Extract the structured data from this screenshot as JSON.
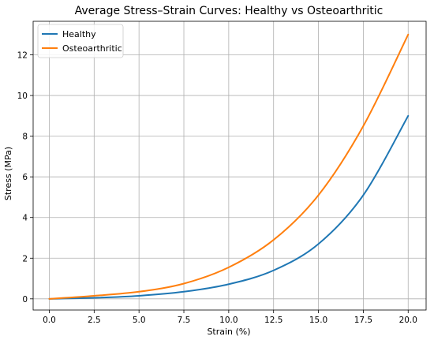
{
  "chart_data": {
    "type": "line",
    "title": "Average Stress–Strain Curves: Healthy vs Osteoarthritic",
    "xlabel": "Strain (%)",
    "ylabel": "Stress (MPa)",
    "xlim": [
      -0.9,
      21
    ],
    "ylim": [
      -0.55,
      13.65
    ],
    "grid": true,
    "legend_position": "top-left",
    "x_ticks": [
      0.0,
      2.5,
      5.0,
      7.5,
      10.0,
      12.5,
      15.0,
      17.5,
      20.0
    ],
    "x_tick_labels": [
      "0.0",
      "2.5",
      "5.0",
      "7.5",
      "10.0",
      "12.5",
      "15.0",
      "17.5",
      "20.0"
    ],
    "y_ticks": [
      0,
      2,
      4,
      6,
      8,
      10,
      12
    ],
    "y_tick_labels": [
      "0",
      "2",
      "4",
      "6",
      "8",
      "10",
      "12"
    ],
    "x": [
      0.0,
      2.5,
      5.0,
      7.5,
      10.0,
      12.5,
      15.0,
      17.5,
      20.0
    ],
    "series": [
      {
        "name": "Healthy",
        "color": "#1f77b4",
        "values": [
          0.0,
          0.05,
          0.15,
          0.35,
          0.72,
          1.4,
          2.7,
          5.1,
          9.0
        ]
      },
      {
        "name": "Osteoarthritic",
        "color": "#ff7f0e",
        "values": [
          0.0,
          0.15,
          0.35,
          0.75,
          1.55,
          2.9,
          5.1,
          8.5,
          13.0
        ]
      }
    ]
  }
}
